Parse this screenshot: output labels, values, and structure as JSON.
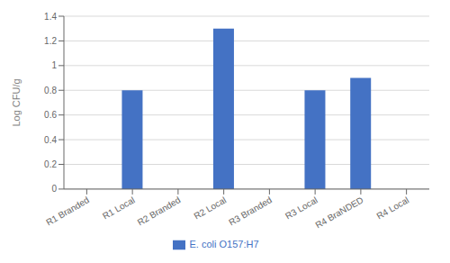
{
  "chart_data": {
    "type": "bar",
    "categories": [
      "R1 Branded",
      "R1 Local",
      "R2 Branded",
      "R2 Local",
      "R3 Branded",
      "R3 Local",
      "R4 BraNDED",
      "R4 Local"
    ],
    "series": [
      {
        "name": "E. coli O157:H7",
        "color": "#4472C4",
        "values": [
          0,
          0.8,
          0,
          1.3,
          0,
          0.8,
          0.9,
          0
        ]
      }
    ],
    "ylabel": "Log CFU/g",
    "ylim": [
      0,
      1.4
    ],
    "yticks": [
      0,
      0.2,
      0.4,
      0.6,
      0.8,
      1,
      1.2,
      1.4
    ],
    "grid": true,
    "legend": "bottom"
  }
}
